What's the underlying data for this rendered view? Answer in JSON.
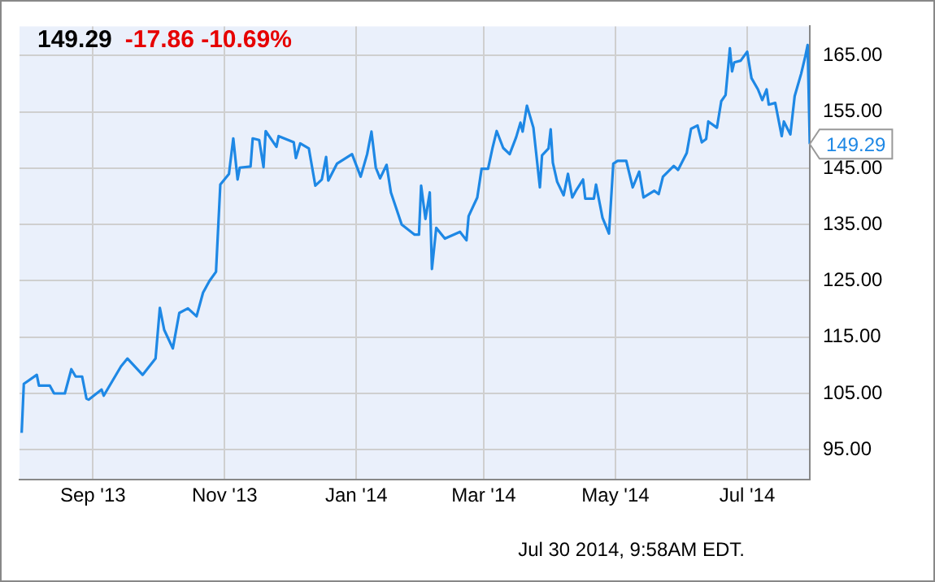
{
  "chart_data": {
    "type": "line",
    "title": "149.29",
    "subtitle": "-17.86 -10.69%",
    "annotations": [
      {
        "text": "149.29",
        "x": "2014-07-30",
        "y": 149.29
      },
      "Jul 30 2014, 9:58AM EDT."
    ],
    "xlim": [
      "2013-07-29",
      "2014-07-30"
    ],
    "xticks": [
      {
        "value": "2013-09-01",
        "label": "Sep '13"
      },
      {
        "value": "2013-11-01",
        "label": "Nov '13"
      },
      {
        "value": "2014-01-01",
        "label": "Jan '14"
      },
      {
        "value": "2014-03-01",
        "label": "Mar '14"
      },
      {
        "value": "2014-05-01",
        "label": "May '14"
      },
      {
        "value": "2014-07-01",
        "label": "Jul '14"
      }
    ],
    "ylim": [
      89.7,
      170.2
    ],
    "yticks": [
      {
        "value": 95,
        "label": "95.00"
      },
      {
        "value": 105,
        "label": "105.00"
      },
      {
        "value": 115,
        "label": "115.00"
      },
      {
        "value": 125,
        "label": "125.00"
      },
      {
        "value": 135,
        "label": "135.00"
      },
      {
        "value": 145,
        "label": "145.00"
      },
      {
        "value": 155,
        "label": "155.00"
      },
      {
        "value": 165,
        "label": "165.00"
      }
    ],
    "grid": true,
    "legend": false,
    "marker": "none",
    "line_style": "solid",
    "series": [
      {
        "color": "#1e88e5",
        "x": [
          "2013-07-30",
          "2013-07-31",
          "2013-08-06",
          "2013-08-07",
          "2013-08-12",
          "2013-08-14",
          "2013-08-19",
          "2013-08-22",
          "2013-08-24",
          "2013-08-27",
          "2013-08-29",
          "2013-08-30",
          "2013-09-05",
          "2013-09-06",
          "2013-09-10",
          "2013-09-14",
          "2013-09-17",
          "2013-09-24",
          "2013-09-30",
          "2013-10-02",
          "2013-10-04",
          "2013-10-08",
          "2013-10-11",
          "2013-10-15",
          "2013-10-19",
          "2013-10-22",
          "2013-10-25",
          "2013-10-28",
          "2013-10-30",
          "2013-11-03",
          "2013-11-05",
          "2013-11-07",
          "2013-11-08",
          "2013-11-13",
          "2013-11-14",
          "2013-11-17",
          "2013-11-19",
          "2013-11-20",
          "2013-11-25",
          "2013-11-26",
          "2013-12-03",
          "2013-12-04",
          "2013-12-06",
          "2013-12-10",
          "2013-12-13",
          "2013-12-16",
          "2013-12-18",
          "2013-12-19",
          "2013-12-23",
          "2013-12-30",
          "2014-01-03",
          "2014-01-06",
          "2014-01-08",
          "2014-01-10",
          "2014-01-12",
          "2014-01-15",
          "2014-01-17",
          "2014-01-22",
          "2014-01-28",
          "2014-01-30",
          "2014-01-31",
          "2014-02-02",
          "2014-02-04",
          "2014-02-05",
          "2014-02-07",
          "2014-02-11",
          "2014-02-18",
          "2014-02-21",
          "2014-02-22",
          "2014-02-26",
          "2014-02-28",
          "2014-03-03",
          "2014-03-05",
          "2014-03-07",
          "2014-03-10",
          "2014-03-13",
          "2014-03-16",
          "2014-03-18",
          "2014-03-19",
          "2014-03-21",
          "2014-03-24",
          "2014-03-27",
          "2014-03-28",
          "2014-03-31",
          "2014-04-01",
          "2014-04-02",
          "2014-04-04",
          "2014-04-07",
          "2014-04-09",
          "2014-04-11",
          "2014-04-13",
          "2014-04-16",
          "2014-04-17",
          "2014-04-21",
          "2014-04-22",
          "2014-04-25",
          "2014-04-28",
          "2014-04-30",
          "2014-05-02",
          "2014-05-06",
          "2014-05-09",
          "2014-05-12",
          "2014-05-14",
          "2014-05-19",
          "2014-05-21",
          "2014-05-23",
          "2014-05-28",
          "2014-05-30",
          "2014-06-03",
          "2014-06-05",
          "2014-06-08",
          "2014-06-10",
          "2014-06-12",
          "2014-06-13",
          "2014-06-17",
          "2014-06-19",
          "2014-06-21",
          "2014-06-23",
          "2014-06-24",
          "2014-06-25",
          "2014-06-28",
          "2014-07-01",
          "2014-07-03",
          "2014-07-06",
          "2014-07-08",
          "2014-07-10",
          "2014-07-11",
          "2014-07-14",
          "2014-07-17",
          "2014-07-18",
          "2014-07-21",
          "2014-07-23",
          "2014-07-26",
          "2014-07-28",
          "2014-07-29",
          "2014-07-30"
        ],
        "values": [
          98.0,
          106.7,
          108.3,
          106.4,
          106.4,
          105.0,
          105.0,
          109.3,
          108.0,
          108.0,
          104.1,
          103.9,
          105.7,
          104.6,
          107.2,
          109.8,
          111.2,
          108.3,
          111.2,
          120.2,
          116.3,
          113.0,
          119.3,
          120.1,
          118.7,
          122.9,
          125.0,
          126.6,
          142.1,
          144.0,
          150.3,
          143.0,
          145.1,
          145.3,
          150.3,
          150.0,
          145.2,
          151.6,
          148.8,
          150.7,
          149.6,
          146.8,
          149.4,
          148.5,
          141.9,
          143.0,
          147.0,
          142.8,
          145.8,
          147.5,
          143.5,
          147.5,
          151.5,
          145.1,
          143.2,
          145.6,
          140.7,
          135.0,
          133.2,
          133.2,
          141.9,
          136.0,
          140.7,
          127.1,
          134.4,
          132.5,
          133.7,
          132.2,
          136.5,
          139.8,
          144.9,
          144.9,
          148.5,
          151.6,
          148.6,
          147.5,
          150.5,
          153.1,
          151.5,
          156.1,
          152.2,
          141.6,
          147.3,
          148.5,
          151.9,
          146.0,
          142.6,
          140.2,
          144.0,
          139.8,
          141.2,
          143.0,
          139.6,
          139.6,
          142.1,
          136.2,
          133.4,
          145.8,
          146.3,
          146.3,
          141.6,
          144.4,
          139.8,
          141.0,
          140.4,
          143.5,
          145.4,
          144.7,
          147.7,
          152.0,
          152.6,
          149.6,
          150.2,
          153.3,
          152.2,
          156.9,
          158.0,
          166.3,
          162.2,
          163.8,
          164.1,
          165.7,
          161.0,
          159.0,
          157.1,
          159.0,
          156.3,
          156.6,
          150.7,
          153.3,
          151.0,
          157.8,
          161.8,
          165.0,
          166.9,
          149.29
        ]
      }
    ]
  }
}
